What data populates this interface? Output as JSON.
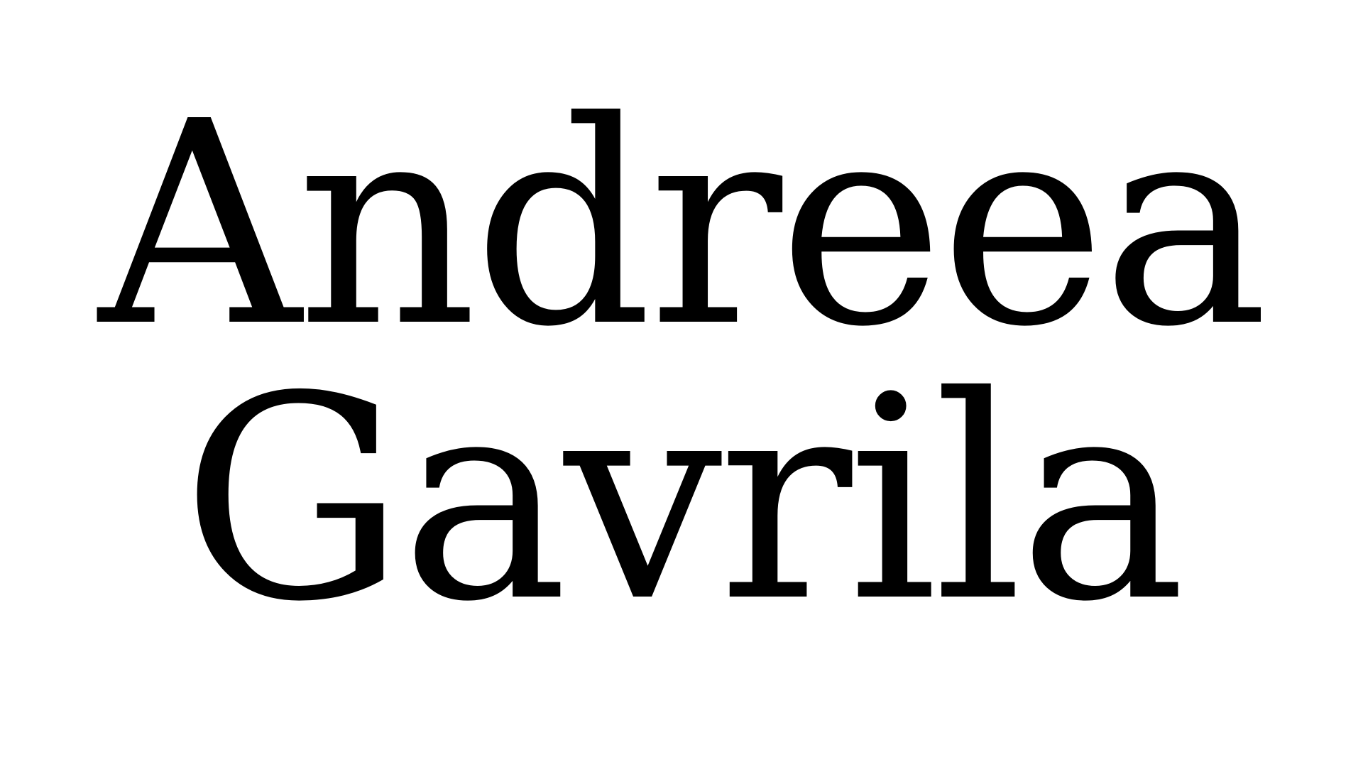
{
  "title": {
    "first_name": "Andreea",
    "last_name": "Gavrila"
  },
  "colors": {
    "background": "#ffffff",
    "text": "#000000"
  }
}
